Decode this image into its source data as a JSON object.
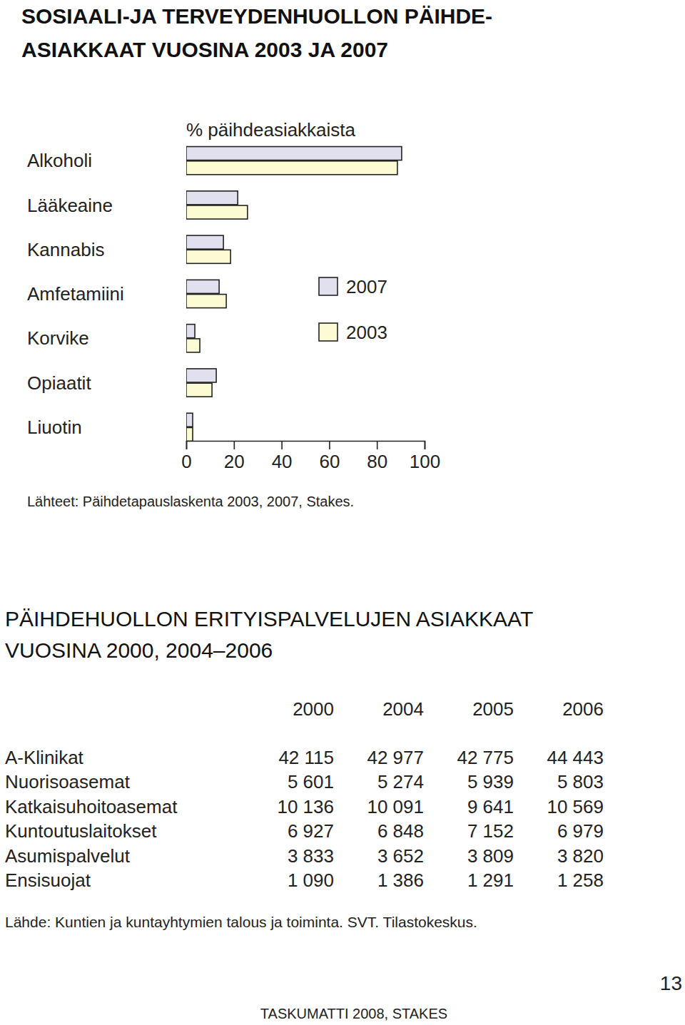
{
  "chart_data": {
    "type": "bar",
    "orientation": "horizontal",
    "title": [
      "SOSIAALI-JA TERVEYDENHUOLLON PÄIHDE-",
      "ASIAKKAAT VUOSINA 2003 JA 2007"
    ],
    "x_label": "% päihdeasiakkaista",
    "categories": [
      "Alkoholi",
      "Lääkeaine",
      "Kannabis",
      "Amfetamiini",
      "Korvike",
      "Opiaatit",
      "Liuotin"
    ],
    "series": [
      {
        "name": "2007",
        "color": "#e1e0ef",
        "values": [
          90.4,
          21.6,
          15.6,
          13.8,
          3.6,
          12.6,
          2.7
        ]
      },
      {
        "name": "2003",
        "color": "#fdfbd3",
        "values": [
          88.6,
          25.7,
          18.6,
          16.8,
          5.7,
          10.8,
          2.7
        ]
      }
    ],
    "xlim": [
      0,
      100
    ],
    "xticks": [
      0,
      20,
      40,
      60,
      80,
      100
    ],
    "legend": "right",
    "annotations": [
      "Lähteet: Päihdetapauslaskenta 2003, 2007, Stakes."
    ]
  },
  "table": {
    "title": [
      "PÄIHDEHUOLLON ERITYISPALVELUJEN ASIAKKAAT",
      "VUOSINA 2000, 2004–2006"
    ],
    "columns": [
      "2000",
      "2004",
      "2005",
      "2006"
    ],
    "rows": [
      [
        "A-Klinikat",
        "42 115",
        "42 977",
        "42 775",
        "44 443"
      ],
      [
        "Nuorisoasemat",
        "5 601",
        "5 274",
        "5 939",
        "5 803"
      ],
      [
        "Katkaisuhoitoasemat",
        "10 136",
        "10 091",
        "9 641",
        "10 569"
      ],
      [
        "Kuntoutuslaitokset",
        "6 927",
        "6 848",
        "7 152",
        "6 979"
      ],
      [
        "Asumispalvelut",
        "3 833",
        "3 652",
        "3 809",
        "3 820"
      ],
      [
        "Ensisuojat",
        "1 090",
        "1 386",
        "1 291",
        "1 258"
      ]
    ],
    "source": "Lähde: Kuntien ja kuntayhtymien talous ja toiminta. SVT. Tilastokeskus."
  },
  "footer": {
    "page_number": "13",
    "text": "TASKUMATTI 2008, STAKES"
  }
}
